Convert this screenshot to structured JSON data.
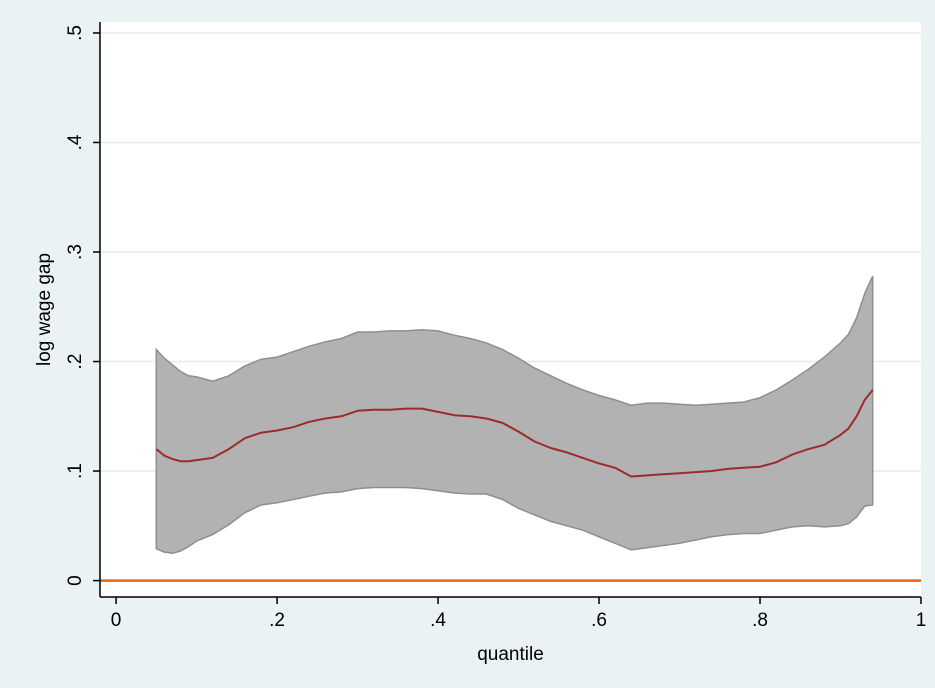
{
  "chart_data": {
    "type": "area",
    "title": "",
    "xlabel": "quantile",
    "ylabel": "log wage gap",
    "xlim": [
      -0.02,
      1.0
    ],
    "ylim": [
      -0.015,
      0.51
    ],
    "xticks": [
      0,
      0.2,
      0.4,
      0.6,
      0.8,
      1
    ],
    "xtick_labels": [
      "0",
      ".2",
      ".4",
      ".6",
      ".8",
      "1"
    ],
    "yticks": [
      0,
      0.1,
      0.2,
      0.3,
      0.4,
      0.5
    ],
    "ytick_labels": [
      "0",
      ".1",
      ".2",
      ".3",
      ".4",
      ".5"
    ],
    "grid": true,
    "legend": "none",
    "colors": {
      "outer_background": "#eaf2f3",
      "plot_background": "#ffffff",
      "grid": "#e5eced",
      "band_fill": "#b2b2b2",
      "band_edge": "#8e8e8e",
      "estimate_line": "#9e2b2b",
      "reference_line": "#e8641b"
    },
    "reference_line": {
      "y": 0
    },
    "series": [
      {
        "role": "confidence-band",
        "x": [
          0.05,
          0.06,
          0.07,
          0.08,
          0.09,
          0.1,
          0.12,
          0.14,
          0.16,
          0.18,
          0.2,
          0.22,
          0.24,
          0.26,
          0.28,
          0.3,
          0.32,
          0.34,
          0.36,
          0.38,
          0.4,
          0.42,
          0.44,
          0.46,
          0.48,
          0.5,
          0.52,
          0.54,
          0.56,
          0.58,
          0.6,
          0.62,
          0.64,
          0.66,
          0.68,
          0.7,
          0.72,
          0.74,
          0.76,
          0.78,
          0.8,
          0.82,
          0.84,
          0.86,
          0.88,
          0.9,
          0.91,
          0.92,
          0.93,
          0.94
        ],
        "upper": [
          0.211,
          0.203,
          0.197,
          0.191,
          0.187,
          0.186,
          0.182,
          0.187,
          0.196,
          0.202,
          0.204,
          0.209,
          0.214,
          0.218,
          0.221,
          0.227,
          0.227,
          0.228,
          0.228,
          0.229,
          0.228,
          0.224,
          0.221,
          0.217,
          0.211,
          0.203,
          0.194,
          0.187,
          0.18,
          0.174,
          0.169,
          0.165,
          0.16,
          0.162,
          0.162,
          0.161,
          0.16,
          0.161,
          0.162,
          0.163,
          0.167,
          0.174,
          0.183,
          0.193,
          0.204,
          0.217,
          0.225,
          0.24,
          0.262,
          0.278
        ],
        "lower": [
          0.029,
          0.026,
          0.025,
          0.027,
          0.031,
          0.036,
          0.042,
          0.051,
          0.062,
          0.069,
          0.071,
          0.074,
          0.077,
          0.08,
          0.081,
          0.084,
          0.085,
          0.085,
          0.085,
          0.084,
          0.082,
          0.08,
          0.079,
          0.079,
          0.074,
          0.066,
          0.06,
          0.054,
          0.05,
          0.046,
          0.04,
          0.034,
          0.028,
          0.03,
          0.032,
          0.034,
          0.037,
          0.04,
          0.042,
          0.043,
          0.043,
          0.046,
          0.049,
          0.05,
          0.049,
          0.05,
          0.052,
          0.058,
          0.068,
          0.069
        ]
      },
      {
        "role": "estimate",
        "x": [
          0.05,
          0.06,
          0.07,
          0.08,
          0.09,
          0.1,
          0.12,
          0.14,
          0.16,
          0.18,
          0.2,
          0.22,
          0.24,
          0.26,
          0.28,
          0.3,
          0.32,
          0.34,
          0.36,
          0.38,
          0.4,
          0.42,
          0.44,
          0.46,
          0.48,
          0.5,
          0.52,
          0.54,
          0.56,
          0.58,
          0.6,
          0.62,
          0.64,
          0.66,
          0.68,
          0.7,
          0.72,
          0.74,
          0.76,
          0.78,
          0.8,
          0.82,
          0.84,
          0.86,
          0.88,
          0.9,
          0.91,
          0.92,
          0.93,
          0.94
        ],
        "y": [
          0.12,
          0.114,
          0.111,
          0.109,
          0.109,
          0.11,
          0.112,
          0.12,
          0.13,
          0.135,
          0.137,
          0.14,
          0.145,
          0.148,
          0.15,
          0.155,
          0.156,
          0.156,
          0.157,
          0.157,
          0.154,
          0.151,
          0.15,
          0.148,
          0.144,
          0.136,
          0.127,
          0.121,
          0.117,
          0.112,
          0.107,
          0.103,
          0.095,
          0.096,
          0.097,
          0.098,
          0.099,
          0.1,
          0.102,
          0.103,
          0.104,
          0.108,
          0.115,
          0.12,
          0.124,
          0.133,
          0.139,
          0.15,
          0.165,
          0.174
        ]
      }
    ]
  }
}
